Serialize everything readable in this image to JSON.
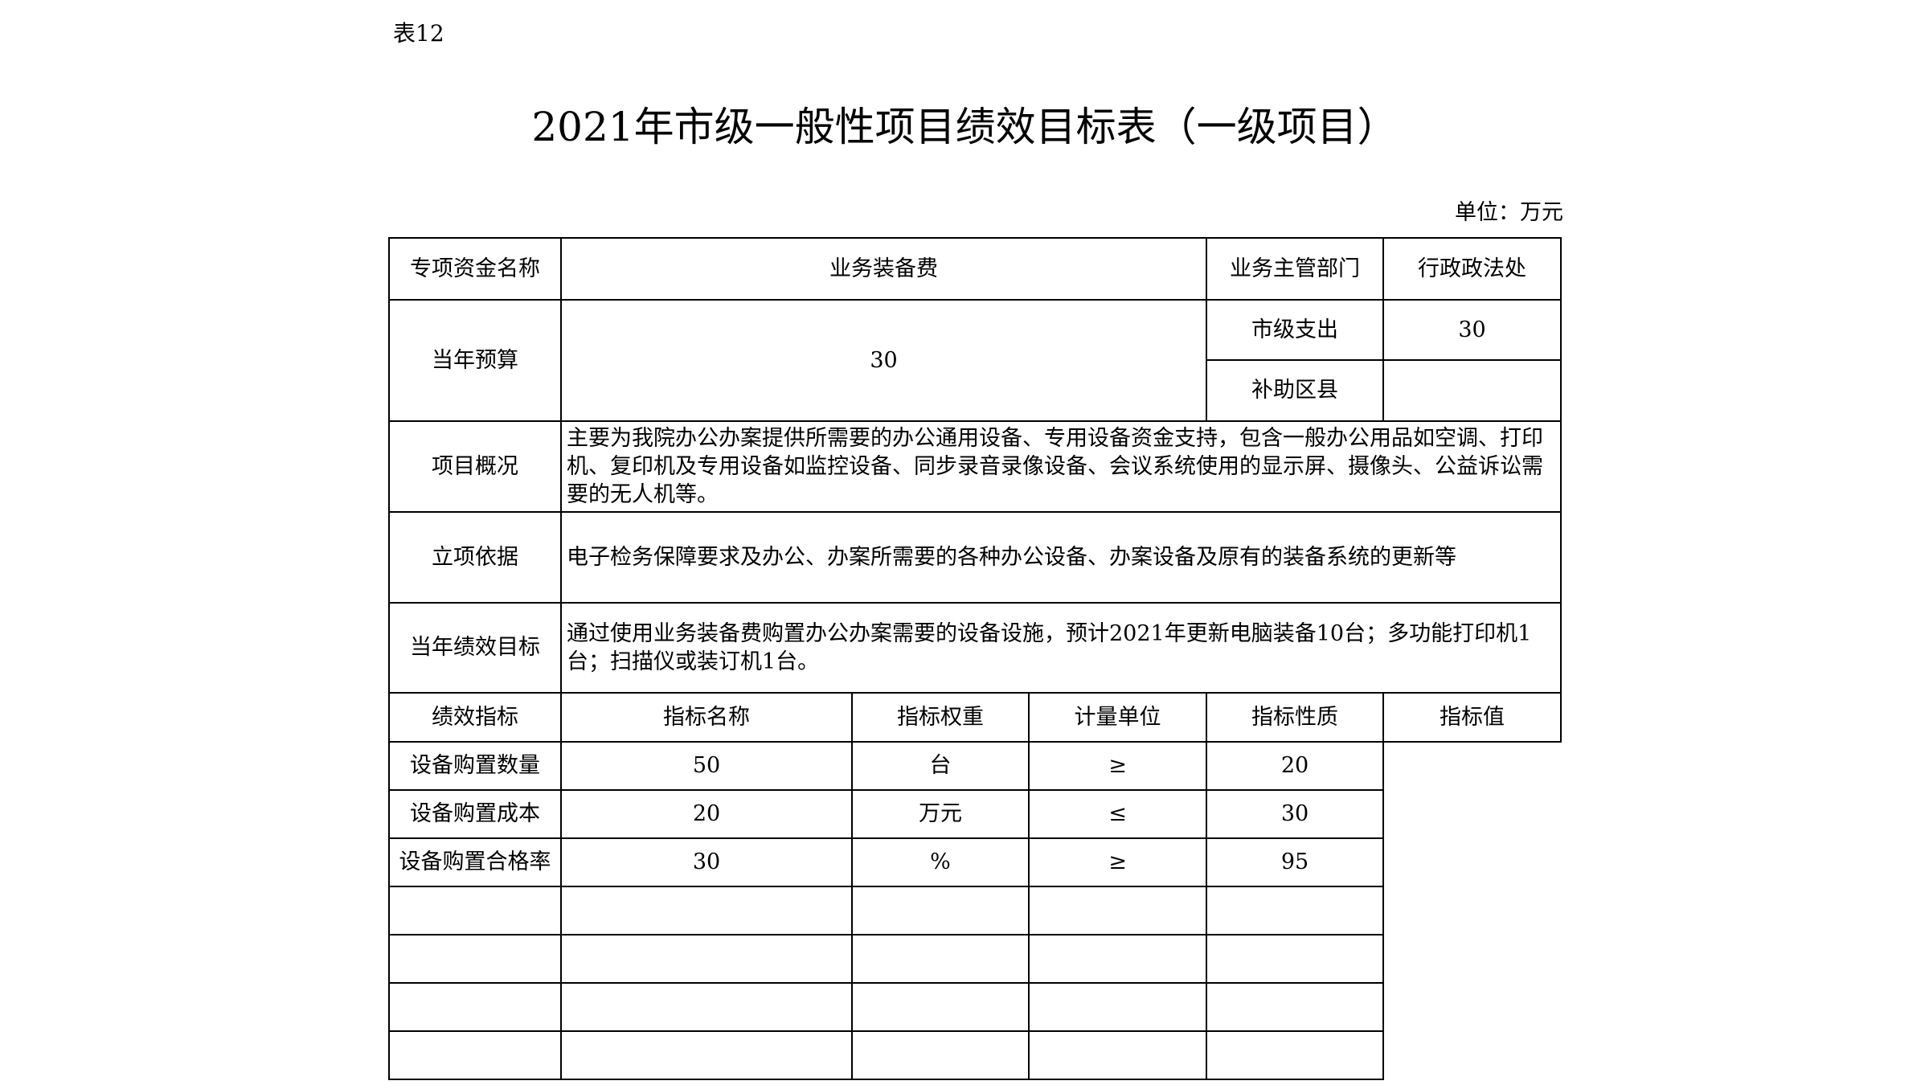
{
  "table_tag": "表12",
  "title": "2021年市级一般性项目绩效目标表（一级项目）",
  "unit": "单位：万元",
  "fund_name_label": "专项资金名称",
  "fund_name": "业务装备费",
  "dept_label": "业务主管部门",
  "dept": "行政政法处",
  "budget_label": "当年预算",
  "budget": "30",
  "city_expense_label": "市级支出",
  "city_expense": "30",
  "district_subsidy_label": "补助区县",
  "district_subsidy": "",
  "overview_label": "项目概况",
  "overview": "主要为我院办公办案提供所需要的办公通用设备、专用设备资金支持，包含一般办公用品如空调、打印机、复印机及专用设备如监控设备、同步录音录像设备、会议系统使用的显示屏、摄像头、公益诉讼需要的无人机等。",
  "basis_label": "立项依据",
  "basis": "电子检务保障要求及办公、办案所需要的各种办公设备、办案设备及原有的装备系统的更新等",
  "goal_label": "当年绩效目标",
  "goal": "通过使用业务装备费购置办公办案需要的设备设施，预计2021年更新电脑装备10台；多功能打印机1台；扫描仪或装订机1台。",
  "indicators_label": "绩效指标",
  "indicator_headers": [
    "指标名称",
    "指标权重",
    "计量单位",
    "指标性质",
    "指标值"
  ],
  "indicators": [
    [
      "设备购置数量",
      "50",
      "台",
      "≥",
      "20"
    ],
    [
      "设备购置成本",
      "20",
      "万元",
      "≤",
      "30"
    ],
    [
      "设备购置合格率",
      "30",
      "%",
      "≥",
      "95"
    ],
    [
      "",
      "",
      "",
      "",
      ""
    ],
    [
      "",
      "",
      "",
      "",
      ""
    ],
    [
      "",
      "",
      "",
      "",
      ""
    ],
    [
      "",
      "",
      "",
      "",
      ""
    ]
  ]
}
